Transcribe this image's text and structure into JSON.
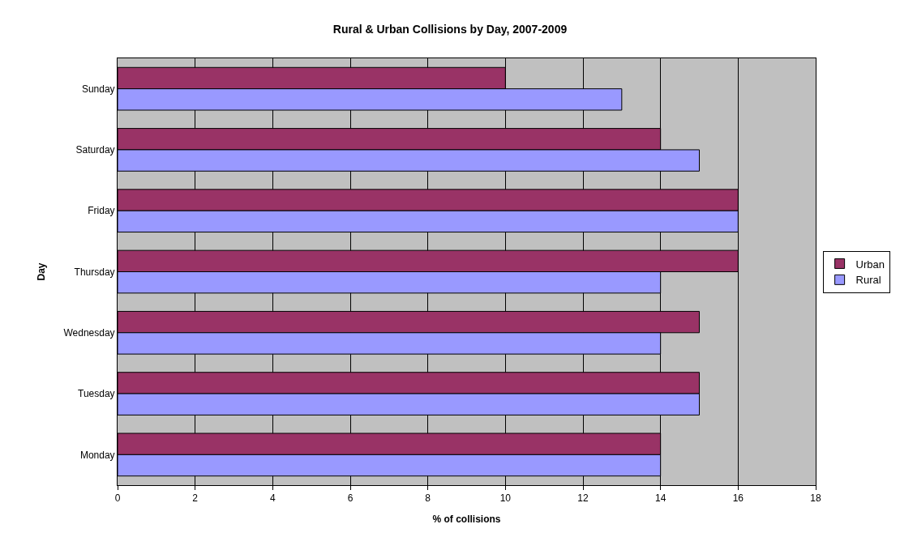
{
  "chart_data": {
    "type": "bar",
    "orientation": "horizontal",
    "title": "Rural & Urban Collisions by Day, 2007-2009",
    "xlabel": "% of collisions",
    "ylabel": "Day",
    "categories": [
      "Sunday",
      "Saturday",
      "Friday",
      "Thursday",
      "Wednesday",
      "Tuesday",
      "Monday"
    ],
    "series": [
      {
        "name": "Urban",
        "color": "#993366",
        "values": [
          10,
          14,
          16,
          16,
          15,
          15,
          14
        ]
      },
      {
        "name": "Rural",
        "color": "#9999ff",
        "values": [
          13,
          15,
          16,
          14,
          14,
          15,
          14
        ]
      }
    ],
    "xlim": [
      0,
      18
    ],
    "xticks": [
      0,
      2,
      4,
      6,
      8,
      10,
      12,
      14,
      16,
      18
    ],
    "grid": "x",
    "legend": "right"
  }
}
